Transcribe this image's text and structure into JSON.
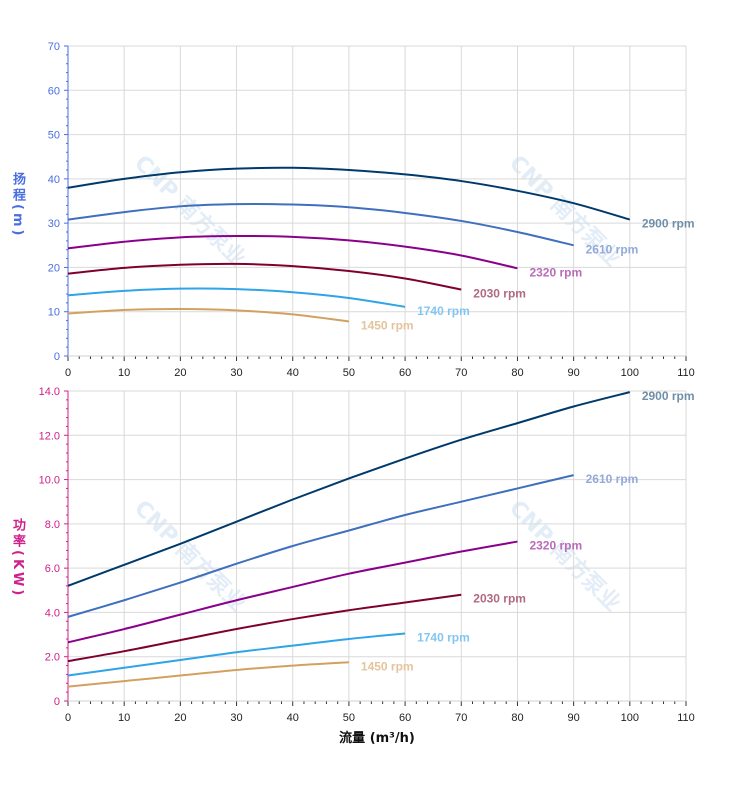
{
  "chart_data": [
    {
      "type": "line",
      "ylabel": "扬程(m)",
      "xlim": [
        0,
        110
      ],
      "ylim": [
        0,
        70
      ],
      "xticks": [
        "0",
        "10",
        "20",
        "30",
        "40",
        "50",
        "60",
        "70",
        "80",
        "90",
        "100",
        "110"
      ],
      "yticks": [
        "0",
        "10",
        "20",
        "30",
        "40",
        "50",
        "60",
        "70"
      ],
      "grid": true,
      "axis_color": "#4a6ee0",
      "series": [
        {
          "name": "2900 rpm",
          "color": "#003a6b",
          "label_color": "#6f8fa8",
          "x": [
            0,
            10,
            20,
            30,
            40,
            50,
            60,
            70,
            80,
            90,
            100
          ],
          "y": [
            38,
            40,
            41.5,
            42.3,
            42.5,
            42,
            41,
            39.5,
            37.3,
            34.5,
            30.8
          ]
        },
        {
          "name": "2610 rpm",
          "color": "#3f6fbf",
          "label_color": "#93a9d8",
          "x": [
            0,
            10,
            20,
            30,
            40,
            50,
            60,
            70,
            80,
            90
          ],
          "y": [
            30.8,
            32.5,
            33.8,
            34.3,
            34.2,
            33.6,
            32.3,
            30.5,
            28,
            25
          ]
        },
        {
          "name": "2320 rpm",
          "color": "#8b008b",
          "label_color": "#b86bb8",
          "x": [
            0,
            10,
            20,
            30,
            40,
            50,
            60,
            70,
            80
          ],
          "y": [
            24.3,
            25.8,
            26.8,
            27.1,
            26.9,
            26.1,
            24.7,
            22.7,
            19.8
          ]
        },
        {
          "name": "2030 rpm",
          "color": "#7f0030",
          "label_color": "#b06a80",
          "x": [
            0,
            10,
            20,
            30,
            40,
            50,
            60,
            70
          ],
          "y": [
            18.6,
            19.9,
            20.6,
            20.8,
            20.3,
            19.2,
            17.5,
            15
          ]
        },
        {
          "name": "1740 rpm",
          "color": "#2fa4e7",
          "label_color": "#84c6f0",
          "x": [
            0,
            10,
            20,
            30,
            40,
            50,
            60
          ],
          "y": [
            13.7,
            14.7,
            15.2,
            15.1,
            14.4,
            13.1,
            11.1
          ]
        },
        {
          "name": "1450 rpm",
          "color": "#d4a060",
          "label_color": "#e4c49c",
          "x": [
            0,
            10,
            20,
            30,
            40,
            50
          ],
          "y": [
            9.6,
            10.4,
            10.6,
            10.3,
            9.4,
            7.8
          ]
        }
      ]
    },
    {
      "type": "line",
      "xlabel": "流量 (m³/h)",
      "ylabel": "功率(KW)",
      "xlim": [
        0,
        110
      ],
      "ylim": [
        0,
        14
      ],
      "xticks": [
        "0",
        "10",
        "20",
        "30",
        "40",
        "50",
        "60",
        "70",
        "80",
        "90",
        "100",
        "110"
      ],
      "yticks": [
        "0",
        "2.0",
        "4.0",
        "6.0",
        "8.0",
        "10.0",
        "12.0",
        "14.0"
      ],
      "grid": true,
      "axis_color": "#d0208a",
      "series": [
        {
          "name": "2900 rpm",
          "color": "#003a6b",
          "label_color": "#6f8fa8",
          "x": [
            0,
            10,
            20,
            30,
            40,
            50,
            60,
            70,
            80,
            90,
            100
          ],
          "y": [
            5.2,
            6.15,
            7.1,
            8.1,
            9.1,
            10.05,
            10.95,
            11.8,
            12.55,
            13.3,
            13.95
          ]
        },
        {
          "name": "2610 rpm",
          "color": "#3f6fbf",
          "label_color": "#93a9d8",
          "x": [
            0,
            10,
            20,
            30,
            40,
            50,
            60,
            70,
            80,
            90
          ],
          "y": [
            3.8,
            4.55,
            5.35,
            6.2,
            7.0,
            7.7,
            8.4,
            9.0,
            9.6,
            10.2
          ]
        },
        {
          "name": "2320 rpm",
          "color": "#8b008b",
          "label_color": "#b86bb8",
          "x": [
            0,
            10,
            20,
            30,
            40,
            50,
            60,
            70,
            80
          ],
          "y": [
            2.65,
            3.25,
            3.9,
            4.55,
            5.15,
            5.75,
            6.25,
            6.75,
            7.2
          ]
        },
        {
          "name": "2030 rpm",
          "color": "#7f0030",
          "label_color": "#b06a80",
          "x": [
            0,
            10,
            20,
            30,
            40,
            50,
            60,
            70
          ],
          "y": [
            1.8,
            2.25,
            2.75,
            3.25,
            3.7,
            4.1,
            4.45,
            4.8
          ]
        },
        {
          "name": "1740 rpm",
          "color": "#2fa4e7",
          "label_color": "#84c6f0",
          "x": [
            0,
            10,
            20,
            30,
            40,
            50,
            60
          ],
          "y": [
            1.15,
            1.5,
            1.85,
            2.2,
            2.5,
            2.8,
            3.05
          ]
        },
        {
          "name": "1450 rpm",
          "color": "#d4a060",
          "label_color": "#e4c49c",
          "x": [
            0,
            10,
            20,
            30,
            40,
            50
          ],
          "y": [
            0.65,
            0.9,
            1.15,
            1.4,
            1.6,
            1.75
          ]
        }
      ]
    }
  ],
  "watermark": "CNP 南方泵业"
}
